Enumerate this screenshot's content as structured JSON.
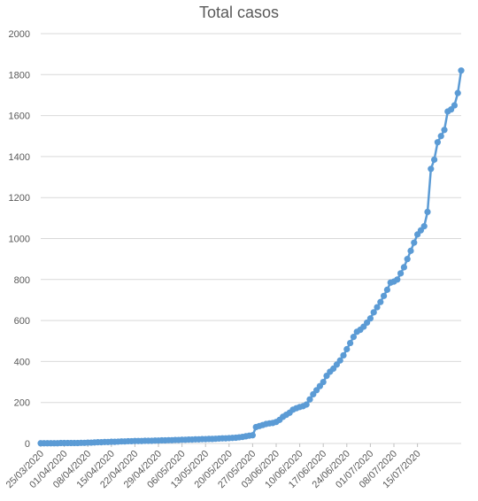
{
  "chart_data": {
    "type": "line",
    "title": "Total casos",
    "xlabel": "",
    "ylabel": "",
    "ylim": [
      0,
      2000
    ],
    "yticks": [
      "0",
      "200",
      "400",
      "600",
      "800",
      "1000",
      "1200",
      "1400",
      "1600",
      "1800",
      "2000"
    ],
    "xticks": [
      "25/03/2020",
      "01/04/2020",
      "08/04/2020",
      "15/04/2020",
      "22/04/2020",
      "29/04/2020",
      "06/05/2020",
      "13/05/2020",
      "20/05/2020",
      "27/05/2020",
      "03/06/2020",
      "10/06/2020",
      "17/06/2020",
      "24/06/2020",
      "01/07/2020",
      "08/07/2020",
      "15/07/2020"
    ],
    "x_start": "2020-03-25",
    "grid": true,
    "color": "#5b9bd5",
    "series": [
      {
        "values": [
          1,
          1,
          1,
          1,
          1,
          1,
          2,
          2,
          2,
          2,
          2,
          2,
          3,
          3,
          4,
          4,
          5,
          6,
          6,
          7,
          7,
          8,
          8,
          9,
          10,
          10,
          11,
          11,
          12,
          12,
          12,
          13,
          13,
          13,
          14,
          14,
          15,
          15,
          16,
          16,
          17,
          17,
          18,
          18,
          19,
          19,
          20,
          20,
          21,
          21,
          22,
          22,
          23,
          24,
          25,
          25,
          26,
          27,
          28,
          30,
          32,
          35,
          38,
          40,
          80,
          85,
          90,
          95,
          98,
          100,
          105,
          115,
          130,
          140,
          150,
          165,
          172,
          178,
          182,
          190,
          215,
          240,
          260,
          280,
          300,
          330,
          350,
          365,
          385,
          405,
          430,
          460,
          490,
          520,
          545,
          555,
          570,
          590,
          610,
          640,
          665,
          690,
          720,
          750,
          785,
          790,
          800,
          830,
          860,
          900,
          940,
          980,
          1020,
          1040,
          1060,
          1130,
          1340,
          1385,
          1470,
          1500,
          1530,
          1620,
          1630,
          1650,
          1710,
          1820
        ]
      }
    ]
  }
}
